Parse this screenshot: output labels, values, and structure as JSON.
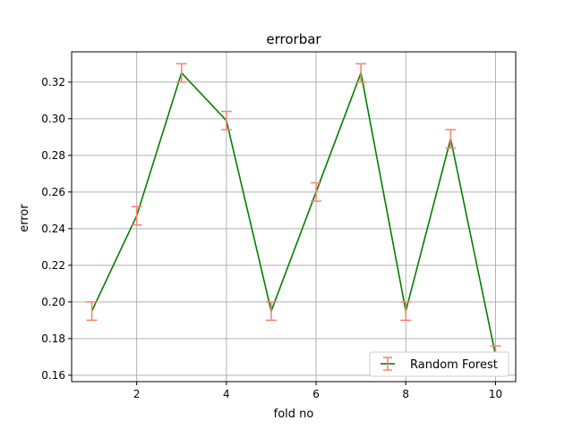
{
  "chart_data": {
    "type": "line",
    "title": "errorbar",
    "xlabel": "fold no",
    "ylabel": "error",
    "x": [
      1,
      2,
      3,
      4,
      5,
      6,
      7,
      8,
      9,
      10
    ],
    "series": [
      {
        "name": "Random Forest",
        "values": [
          0.195,
          0.247,
          0.325,
          0.299,
          0.195,
          0.26,
          0.325,
          0.195,
          0.289,
          0.171
        ],
        "errors": [
          0.005,
          0.005,
          0.005,
          0.005,
          0.005,
          0.005,
          0.005,
          0.005,
          0.005,
          0.005
        ],
        "line_color": "#008000",
        "errorbar_color": "#fa8072"
      }
    ],
    "xlim": [
      0.55,
      10.45
    ],
    "ylim": [
      0.1565,
      0.3365
    ],
    "xticks": [
      2,
      4,
      6,
      8,
      10
    ],
    "xtick_labels": [
      "2",
      "4",
      "6",
      "8",
      "10"
    ],
    "yticks": [
      0.16,
      0.18,
      0.2,
      0.22,
      0.24,
      0.26,
      0.28,
      0.3,
      0.32
    ],
    "ytick_labels": [
      "0.16",
      "0.18",
      "0.20",
      "0.22",
      "0.24",
      "0.26",
      "0.28",
      "0.30",
      "0.32"
    ],
    "grid": true,
    "legend_position": "lower-right"
  }
}
